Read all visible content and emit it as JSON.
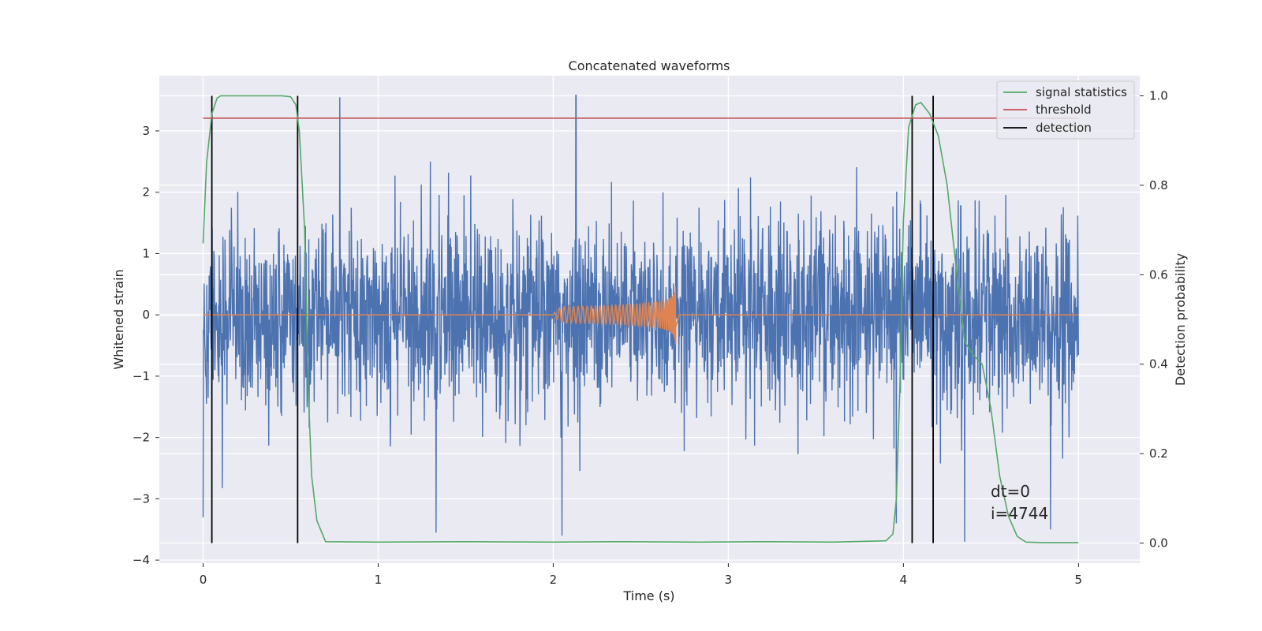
{
  "chart_data": {
    "type": "line",
    "title": "Concatenated waveforms",
    "xlabel": "Time (s)",
    "ylabel_left": "Whitened strain",
    "ylabel_right": "Detection probability",
    "xlim": [
      -0.25,
      5.35
    ],
    "ylim_left": [
      -4.05,
      3.9
    ],
    "ylim_right": [
      -0.045,
      1.045
    ],
    "xticks": [
      0,
      1,
      2,
      3,
      4,
      5
    ],
    "yticks_left": [
      -4,
      -3,
      -2,
      -1,
      0,
      1,
      2,
      3
    ],
    "yticks_right": [
      0.0,
      0.2,
      0.4,
      0.6,
      0.8,
      1.0
    ],
    "grid": true,
    "legend_position": "top-right",
    "colors": {
      "background": "#eaeaf2",
      "noise": "#4c72b0",
      "injected": "#dd8452",
      "statistics": "#55a868",
      "threshold": "#c44e52",
      "detection": "#000000"
    },
    "legend": [
      {
        "label": "signal statistics",
        "color": "#55a868"
      },
      {
        "label": "threshold",
        "color": "#c44e52"
      },
      {
        "label": "detection",
        "color": "#000000"
      }
    ],
    "threshold": 0.95,
    "detections": [
      0.05,
      0.54,
      4.05,
      4.17
    ],
    "noise": {
      "x_range": [
        0,
        5
      ],
      "envelope": [
        -3.7,
        3.6
      ],
      "notable_peaks": [
        {
          "x": 0.0,
          "y": -3.3
        },
        {
          "x": 0.78,
          "y": 3.55
        },
        {
          "x": 1.33,
          "y": -3.55
        },
        {
          "x": 2.13,
          "y": 3.58
        },
        {
          "x": 2.05,
          "y": -3.6
        },
        {
          "x": 3.96,
          "y": -3.4
        },
        {
          "x": 4.35,
          "y": -3.7
        },
        {
          "x": 4.84,
          "y": -3.5
        }
      ]
    },
    "injected_signal": {
      "x_start": 2.0,
      "x_merger": 2.7,
      "peak_amplitude": 0.48
    },
    "signal_statistics": {
      "x": [
        0.0,
        0.02,
        0.05,
        0.08,
        0.1,
        0.15,
        0.3,
        0.45,
        0.5,
        0.53,
        0.55,
        0.58,
        0.6,
        0.62,
        0.65,
        0.7,
        1.0,
        1.5,
        2.0,
        2.4,
        2.8,
        3.2,
        3.6,
        3.9,
        3.94,
        3.96,
        3.98,
        4.0,
        4.03,
        4.07,
        4.1,
        4.15,
        4.2,
        4.25,
        4.3,
        4.35,
        4.4,
        4.45,
        4.5,
        4.55,
        4.6,
        4.65,
        4.7,
        4.8,
        5.0
      ],
      "y": [
        0.67,
        0.85,
        0.96,
        0.995,
        1.0,
        1.0,
        1.0,
        1.0,
        0.998,
        0.98,
        0.92,
        0.7,
        0.35,
        0.15,
        0.05,
        0.003,
        0.002,
        0.003,
        0.002,
        0.003,
        0.002,
        0.003,
        0.002,
        0.005,
        0.02,
        0.1,
        0.35,
        0.72,
        0.93,
        0.98,
        0.985,
        0.96,
        0.91,
        0.8,
        0.62,
        0.45,
        0.42,
        0.4,
        0.3,
        0.15,
        0.06,
        0.015,
        0.002,
        0.001,
        0.001
      ]
    },
    "annotations": [
      "dt=0",
      "i=4744"
    ]
  }
}
